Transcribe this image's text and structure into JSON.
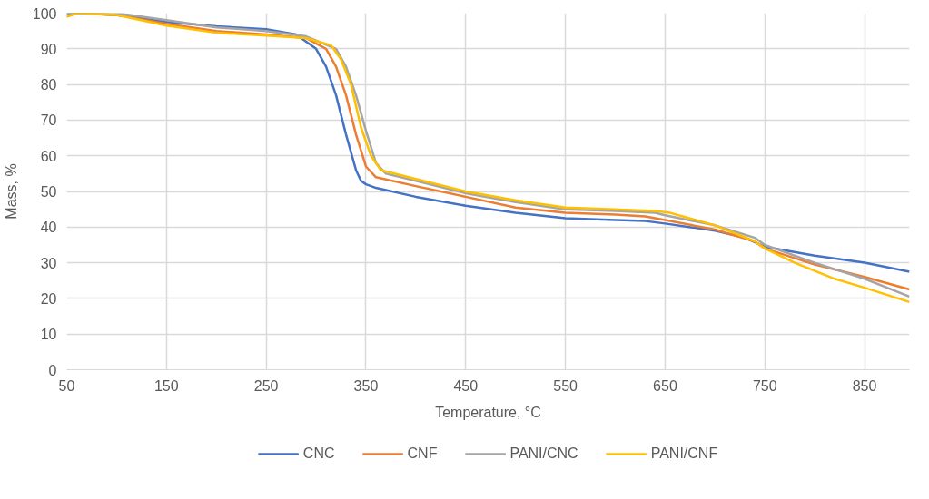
{
  "chart_data": {
    "type": "line",
    "xlabel": "Temperature, °C",
    "ylabel": "Mass, %",
    "xlim": [
      50,
      895
    ],
    "xticks": [
      50,
      150,
      250,
      350,
      450,
      550,
      650,
      750,
      850
    ],
    "ylim": [
      0,
      100
    ],
    "yticks": [
      0,
      10,
      20,
      30,
      40,
      50,
      60,
      70,
      80,
      90,
      100
    ],
    "grid": true,
    "legend": "bottom",
    "marker": "none",
    "line_style": "solid",
    "series": [
      {
        "name": "CNC",
        "color": "#4472c4",
        "x": [
          50,
          100,
          150,
          200,
          250,
          280,
          300,
          310,
          320,
          330,
          340,
          345,
          350,
          360,
          400,
          450,
          500,
          550,
          600,
          630,
          650,
          700,
          730,
          750,
          800,
          850,
          895
        ],
        "values": [
          100,
          99.5,
          97.5,
          96.3,
          95.5,
          94,
          90,
          85,
          77,
          66,
          56,
          53,
          52,
          51,
          48.5,
          46,
          44,
          42.5,
          42,
          41.7,
          41,
          39,
          37,
          34.5,
          32,
          30,
          27.5
        ]
      },
      {
        "name": "CNF",
        "color": "#ed7d31",
        "x": [
          50,
          60,
          100,
          150,
          200,
          250,
          290,
          310,
          320,
          330,
          340,
          350,
          360,
          400,
          450,
          500,
          550,
          600,
          630,
          650,
          700,
          740,
          750,
          800,
          850,
          895
        ],
        "values": [
          99,
          100,
          99.5,
          97,
          95,
          94,
          93,
          90,
          85,
          77,
          66,
          57,
          54,
          51.5,
          48.5,
          45.5,
          44,
          43.5,
          43,
          42,
          39.3,
          36,
          34,
          29.5,
          26,
          22.5
        ]
      },
      {
        "name": "PANI/CNC",
        "color": "#a5a5a5",
        "x": [
          50,
          100,
          150,
          200,
          250,
          290,
          320,
          330,
          340,
          350,
          360,
          370,
          400,
          450,
          500,
          550,
          600,
          640,
          650,
          700,
          740,
          750,
          800,
          850,
          895
        ],
        "values": [
          100,
          100,
          98,
          96,
          95,
          93.5,
          90,
          85,
          77,
          67,
          58,
          55,
          53,
          49.5,
          47,
          45,
          44.5,
          44,
          43.3,
          40.5,
          37,
          35,
          30,
          25.5,
          20.5
        ]
      },
      {
        "name": "PANI/CNF",
        "color": "#ffc000",
        "x": [
          50,
          60,
          100,
          150,
          200,
          250,
          290,
          315,
          325,
          335,
          345,
          355,
          365,
          400,
          450,
          500,
          550,
          600,
          640,
          655,
          700,
          740,
          750,
          780,
          820,
          850,
          895
        ],
        "values": [
          99,
          100,
          99.5,
          96.5,
          94.5,
          93.7,
          93,
          91,
          87,
          80,
          68,
          60,
          56,
          53.5,
          50,
          47.5,
          45.5,
          45,
          44.5,
          44,
          40.5,
          36,
          34,
          30,
          25.5,
          23,
          19
        ]
      }
    ]
  }
}
